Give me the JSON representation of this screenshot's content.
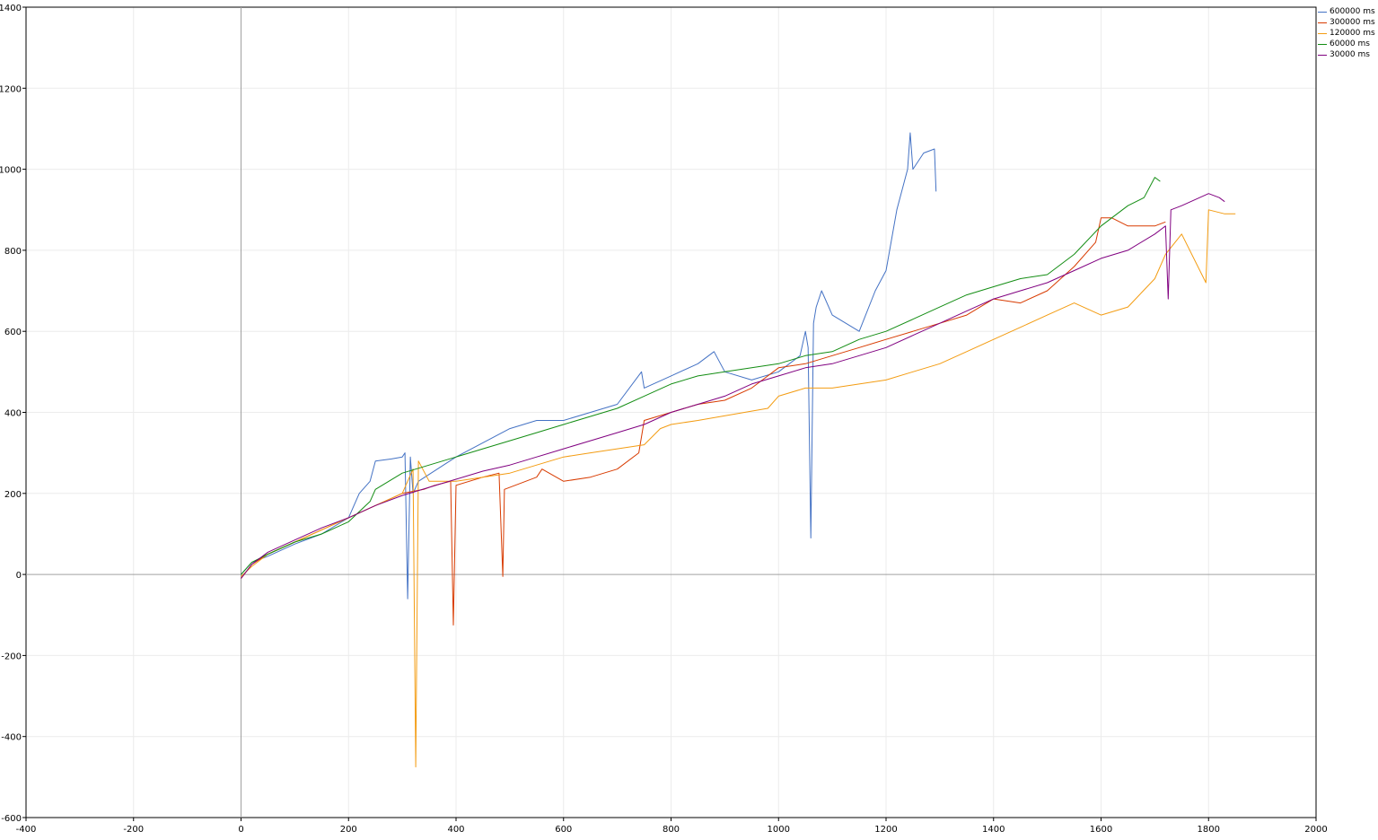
{
  "chart_data": {
    "type": "line",
    "title": "",
    "xlabel": "",
    "ylabel": "",
    "xlim": [
      -400,
      2000
    ],
    "ylim": [
      -600,
      1400
    ],
    "x_ticks": [
      "-400",
      "-200",
      "0",
      "200",
      "400",
      "600",
      "800",
      "1000",
      "1200",
      "1400",
      "1600",
      "1800",
      "2000"
    ],
    "y_ticks": [
      "1400",
      "1200",
      "1000",
      "800",
      "600",
      "400",
      "200",
      "0",
      "-200",
      "-400",
      "-600"
    ],
    "grid": true,
    "legend_position": "top-right",
    "series": [
      {
        "name": "600000 ms",
        "color": "#4472C4",
        "x": [
          0,
          20,
          50,
          100,
          150,
          200,
          220,
          240,
          250,
          280,
          300,
          305,
          310,
          315,
          320,
          330,
          400,
          500,
          550,
          600,
          650,
          700,
          745,
          750,
          800,
          850,
          880,
          900,
          950,
          1000,
          1040,
          1050,
          1055,
          1060,
          1065,
          1070,
          1080,
          1100,
          1150,
          1180,
          1200,
          1220,
          1240,
          1245,
          1250,
          1270,
          1290,
          1293
        ],
        "y": [
          0,
          30,
          45,
          75,
          100,
          140,
          200,
          230,
          280,
          285,
          290,
          300,
          -60,
          290,
          200,
          230,
          290,
          360,
          380,
          380,
          400,
          420,
          500,
          460,
          490,
          520,
          550,
          500,
          480,
          500,
          540,
          600,
          560,
          90,
          620,
          660,
          700,
          640,
          600,
          700,
          750,
          900,
          1000,
          1090,
          1000,
          1040,
          1050,
          945
        ]
      },
      {
        "name": "300000 ms",
        "color": "#D83B01",
        "x": [
          0,
          20,
          50,
          100,
          150,
          200,
          250,
          300,
          340,
          360,
          390,
          395,
          400,
          450,
          480,
          487,
          490,
          550,
          560,
          600,
          650,
          700,
          740,
          750,
          800,
          850,
          900,
          950,
          1000,
          1050,
          1100,
          1150,
          1200,
          1250,
          1300,
          1350,
          1400,
          1450,
          1500,
          1550,
          1590,
          1600,
          1620,
          1650,
          1700,
          1720
        ],
        "y": [
          -10,
          25,
          50,
          80,
          110,
          140,
          170,
          200,
          210,
          220,
          230,
          -125,
          220,
          240,
          250,
          -5,
          210,
          240,
          260,
          230,
          240,
          260,
          300,
          380,
          400,
          420,
          430,
          460,
          510,
          520,
          540,
          560,
          580,
          600,
          620,
          640,
          680,
          670,
          700,
          760,
          820,
          880,
          880,
          860,
          860,
          870
        ]
      },
      {
        "name": "120000 ms",
        "color": "#F39C12",
        "x": [
          0,
          20,
          50,
          100,
          150,
          200,
          250,
          300,
          320,
          325,
          330,
          350,
          400,
          450,
          500,
          550,
          600,
          650,
          700,
          750,
          780,
          800,
          850,
          980,
          1000,
          1050,
          1100,
          1150,
          1200,
          1250,
          1300,
          1350,
          1400,
          1450,
          1500,
          1550,
          1600,
          1650,
          1700,
          1720,
          1750,
          1795,
          1800,
          1830,
          1850
        ],
        "y": [
          -5,
          20,
          50,
          80,
          110,
          140,
          170,
          200,
          260,
          -475,
          280,
          230,
          230,
          240,
          250,
          270,
          290,
          300,
          310,
          320,
          360,
          370,
          380,
          410,
          440,
          460,
          460,
          470,
          480,
          500,
          520,
          550,
          580,
          610,
          640,
          670,
          640,
          660,
          730,
          790,
          840,
          720,
          900,
          890,
          890
        ]
      },
      {
        "name": "60000 ms",
        "color": "#138D13",
        "x": [
          0,
          20,
          50,
          100,
          150,
          200,
          240,
          250,
          300,
          350,
          400,
          450,
          500,
          550,
          600,
          650,
          700,
          750,
          800,
          850,
          900,
          950,
          1000,
          1050,
          1100,
          1150,
          1200,
          1250,
          1300,
          1350,
          1400,
          1450,
          1500,
          1550,
          1600,
          1650,
          1680,
          1700,
          1710
        ],
        "y": [
          0,
          30,
          50,
          80,
          100,
          130,
          180,
          210,
          250,
          270,
          290,
          310,
          330,
          350,
          370,
          390,
          410,
          440,
          470,
          490,
          500,
          510,
          520,
          540,
          550,
          580,
          600,
          630,
          660,
          690,
          710,
          730,
          740,
          790,
          860,
          910,
          930,
          980,
          970
        ]
      },
      {
        "name": "30000 ms",
        "color": "#800080",
        "x": [
          0,
          20,
          50,
          100,
          150,
          200,
          250,
          300,
          350,
          400,
          450,
          500,
          550,
          600,
          650,
          700,
          750,
          800,
          850,
          900,
          950,
          1000,
          1050,
          1100,
          1150,
          1200,
          1250,
          1300,
          1350,
          1400,
          1450,
          1500,
          1550,
          1600,
          1650,
          1700,
          1720,
          1725,
          1730,
          1750,
          1800,
          1820,
          1830
        ],
        "y": [
          -10,
          25,
          55,
          85,
          115,
          140,
          170,
          195,
          215,
          235,
          255,
          270,
          290,
          310,
          330,
          350,
          370,
          400,
          420,
          440,
          470,
          490,
          510,
          520,
          540,
          560,
          590,
          620,
          650,
          680,
          700,
          720,
          750,
          780,
          800,
          840,
          860,
          680,
          900,
          910,
          940,
          930,
          920
        ]
      }
    ]
  }
}
